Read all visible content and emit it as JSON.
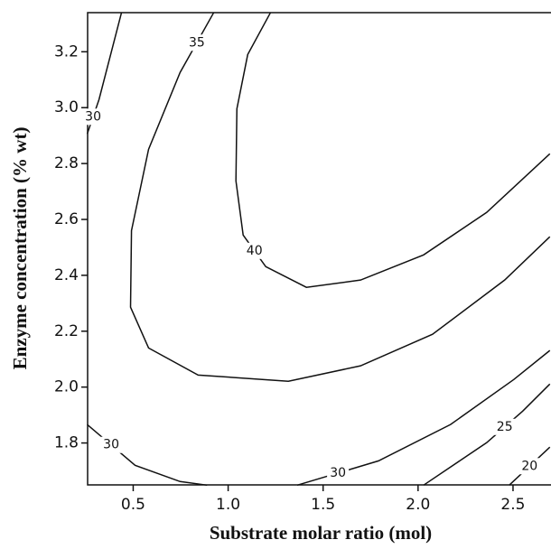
{
  "chart_data": {
    "type": "contour",
    "x_label": "Substrate molar ratio (mol)",
    "y_label": "Enzyme concentration (% wt)",
    "xlim": [
      0.26,
      2.7
    ],
    "ylim": [
      1.65,
      3.34
    ],
    "xticks": [
      0.5,
      {
        "value": 1.0,
        "label": "1.0"
      },
      1.5,
      {
        "value": 2.0,
        "label": "2.0"
      },
      2.5
    ],
    "yticks": [
      1.8,
      {
        "value": 2.0,
        "label": "2.0"
      },
      2.2,
      2.4,
      2.6,
      2.8,
      {
        "value": 3.0,
        "label": "3.0"
      },
      3.2
    ],
    "color": "#111111",
    "contours": [
      {
        "level": 40,
        "x": [
          1.222,
          1.103,
          1.046,
          1.041,
          1.079,
          1.198,
          1.412,
          1.697,
          2.029,
          2.361,
          2.694
        ],
        "y": [
          3.339,
          3.19,
          2.996,
          2.738,
          2.544,
          2.431,
          2.357,
          2.383,
          2.473,
          2.625,
          2.835
        ]
      },
      {
        "level": 35,
        "x": [
          0.923,
          0.747,
          0.581,
          0.491,
          0.486,
          0.581,
          0.842,
          1.317,
          1.697,
          2.076,
          2.456,
          2.694
        ],
        "y": [
          3.339,
          3.126,
          2.851,
          2.56,
          2.286,
          2.14,
          2.043,
          2.021,
          2.076,
          2.189,
          2.383,
          2.538
        ]
      },
      {
        "level": 30,
        "x": [
          0.258,
          0.32,
          0.438
        ],
        "y": [
          2.906,
          3.029,
          3.339
        ]
      },
      {
        "level": 30,
        "x": [
          0.258,
          0.51,
          0.747,
          0.889
        ],
        "y": [
          1.866,
          1.72,
          1.662,
          1.649
        ]
      },
      {
        "level": 30,
        "x": [
          1.364,
          1.792,
          2.171,
          2.504,
          2.694
        ],
        "y": [
          1.649,
          1.736,
          1.866,
          2.027,
          2.131
        ]
      },
      {
        "level": 25,
        "x": [
          2.029,
          2.361,
          2.551,
          2.694
        ],
        "y": [
          1.649,
          1.801,
          1.914,
          2.011
        ]
      },
      {
        "level": 20,
        "x": [
          2.48,
          2.694
        ],
        "y": [
          1.649,
          1.785
        ]
      }
    ]
  }
}
